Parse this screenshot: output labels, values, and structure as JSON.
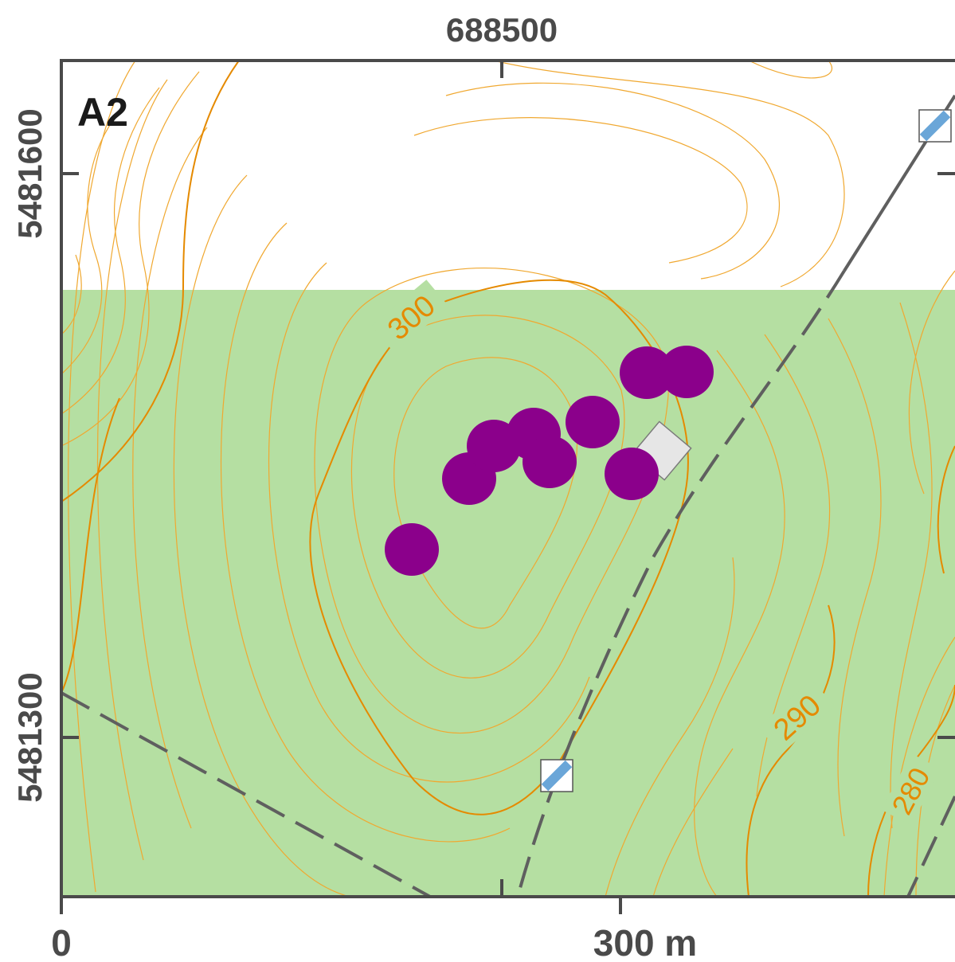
{
  "panel_label": "A2",
  "axes": {
    "top_easting": "688500",
    "left_northing_top": "5481600",
    "left_northing_bottom": "5481300"
  },
  "scale_bar": {
    "start_label": "0",
    "end_label": "300 m"
  },
  "contour_labels": [
    "300",
    "290",
    "280"
  ],
  "colors": {
    "land_green": "#b5dfa2",
    "contour_orange": "#e58a00",
    "contour_thin": "#f0a830",
    "site_purple": "#8b008b",
    "road_grey": "#5f5f5f",
    "building_grey": "#e6e6e6",
    "marker_blue": "#6aa6d8",
    "frame": "#4a4a4a"
  },
  "icons": [
    "site-dot-icon",
    "building-icon",
    "road-marker-icon"
  ],
  "site_count": 9,
  "marker_count": 2
}
